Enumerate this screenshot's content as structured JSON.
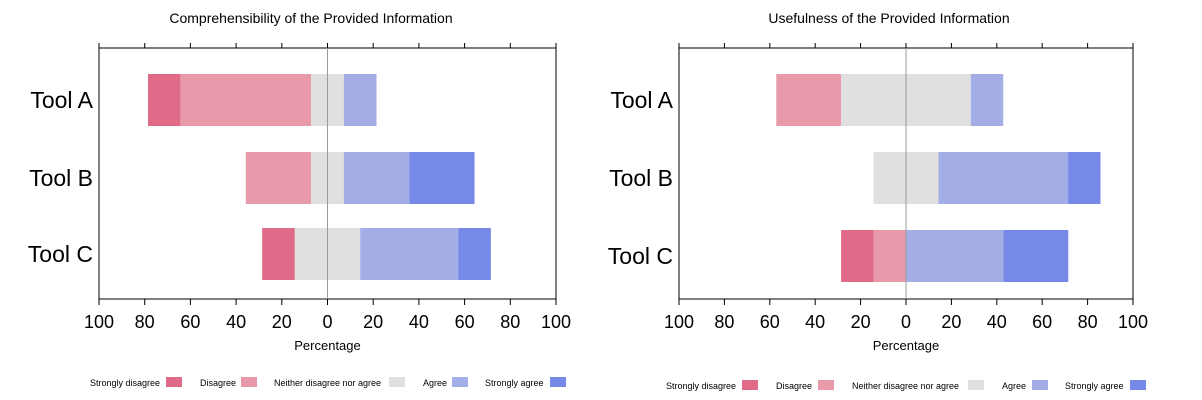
{
  "chart_data": [
    {
      "type": "bar",
      "subtype": "diverging-stacked",
      "title": "Comprehensibility of the Provided Information",
      "xlabel": "Percentage",
      "ylabel": "",
      "xlim": [
        -100,
        100
      ],
      "x_ticks": [
        "100",
        "80",
        "60",
        "40",
        "20",
        "0",
        "20",
        "40",
        "60",
        "80",
        "100"
      ],
      "categories": [
        "Tool A",
        "Tool B",
        "Tool C"
      ],
      "series": [
        {
          "name": "Strongly disagree",
          "color": "#e06b88",
          "values": [
            14.3,
            0,
            14.3
          ]
        },
        {
          "name": "Disagree",
          "color": "#e89aaa",
          "values": [
            57.1,
            28.6,
            0
          ]
        },
        {
          "name": "Neither disagree nor agree",
          "color": "#e0e0e0",
          "values": [
            14.3,
            14.3,
            28.6
          ]
        },
        {
          "name": "Agree",
          "color": "#a3aee6",
          "values": [
            14.3,
            28.6,
            42.9
          ]
        },
        {
          "name": "Strongly agree",
          "color": "#7789e6",
          "values": [
            0,
            28.6,
            14.3
          ]
        }
      ],
      "legend_position": "bottom"
    },
    {
      "type": "bar",
      "subtype": "diverging-stacked",
      "title": "Usefulness of the Provided Information",
      "xlabel": "Percentage",
      "ylabel": "",
      "xlim": [
        -100,
        100
      ],
      "x_ticks": [
        "100",
        "80",
        "60",
        "40",
        "20",
        "0",
        "20",
        "40",
        "60",
        "80",
        "100"
      ],
      "categories": [
        "Tool A",
        "Tool B",
        "Tool C"
      ],
      "series": [
        {
          "name": "Strongly disagree",
          "color": "#e06b88",
          "values": [
            0,
            0,
            14.3
          ]
        },
        {
          "name": "Disagree",
          "color": "#e89aaa",
          "values": [
            28.6,
            0,
            14.3
          ]
        },
        {
          "name": "Neither disagree nor agree",
          "color": "#e0e0e0",
          "values": [
            57.1,
            28.6,
            0
          ]
        },
        {
          "name": "Agree",
          "color": "#a3aee6",
          "values": [
            14.3,
            57.1,
            42.9
          ]
        },
        {
          "name": "Strongly agree",
          "color": "#7789e6",
          "values": [
            0,
            14.3,
            28.6
          ]
        }
      ],
      "legend_position": "bottom"
    }
  ]
}
